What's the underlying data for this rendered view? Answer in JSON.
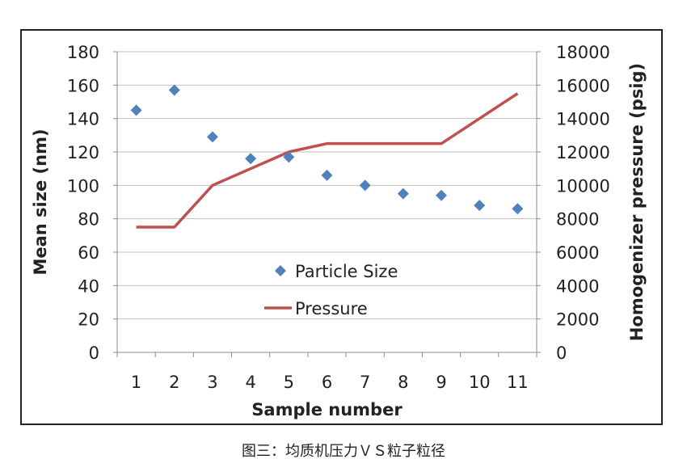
{
  "chart_data": {
    "type": "line",
    "x": [
      1,
      2,
      3,
      4,
      5,
      6,
      7,
      8,
      9,
      10,
      11
    ],
    "xlabel": "Sample number",
    "ylabel_left": "Mean size (nm)",
    "ylabel_right": "Homogenizer pressure (psig)",
    "ylim_left": [
      0,
      180
    ],
    "ylim_right": [
      0,
      18000
    ],
    "yticks_left": [
      0,
      20,
      40,
      60,
      80,
      100,
      120,
      140,
      160,
      180
    ],
    "yticks_right": [
      0,
      2000,
      4000,
      6000,
      8000,
      10000,
      12000,
      14000,
      16000,
      18000
    ],
    "grid": "horizontal",
    "legend_position": "center",
    "series": [
      {
        "name": "Particle Size",
        "type": "scatter",
        "marker": "diamond",
        "axis": "left",
        "color": "#4f81bd",
        "values": [
          145,
          157,
          129,
          116,
          117,
          106,
          100,
          95,
          94,
          88,
          86
        ]
      },
      {
        "name": "Pressure",
        "type": "line",
        "axis": "right",
        "color": "#c0504d",
        "values": [
          7500,
          7500,
          10000,
          11000,
          12000,
          12500,
          12500,
          12500,
          12500,
          14000,
          15500
        ]
      }
    ]
  },
  "caption": "图三：均质机压力ＶＳ粒子粒径"
}
